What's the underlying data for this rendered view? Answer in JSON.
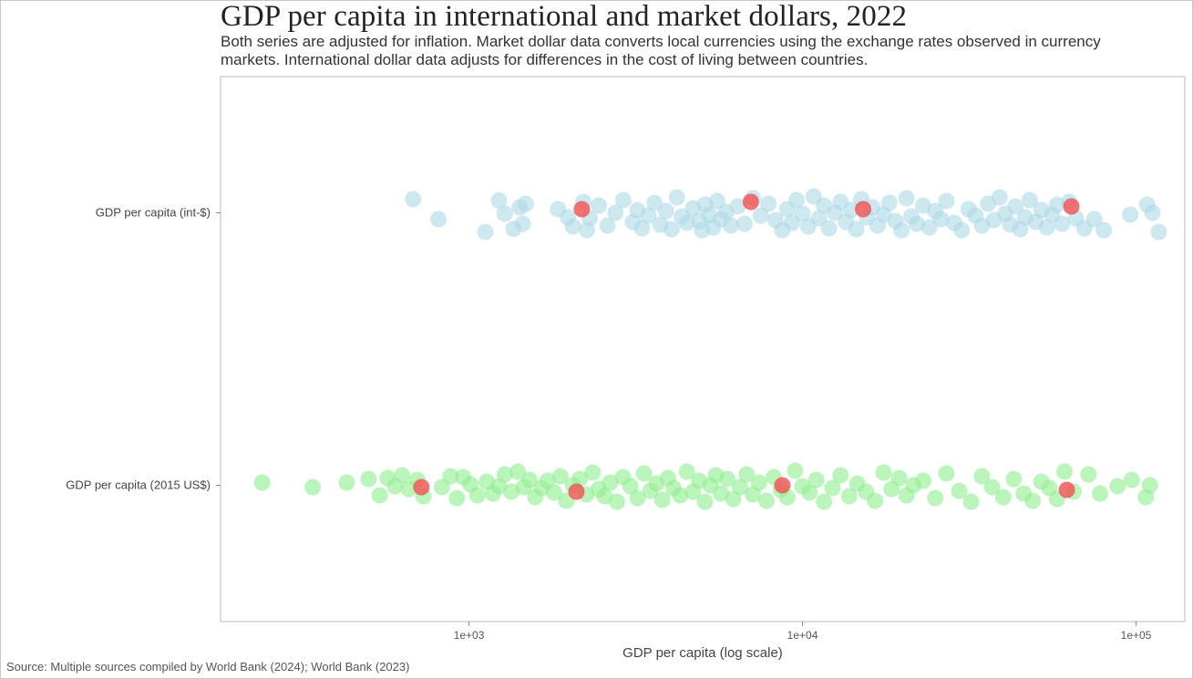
{
  "title": "GDP per capita in international and market dollars, 2022",
  "subtitle": "Both series are adjusted for inflation. Market dollar data converts local currencies using the exchange rates observed in currency markets. International dollar data adjusts for differences in the cost of living between countries.",
  "source": "Source: Multiple sources compiled by World Bank (2024); World Bank (2023)",
  "chart_data": {
    "type": "scatter",
    "log_scale_x": true,
    "xlim": [
      180,
      140000
    ],
    "xlabel": "GDP per capita (log scale)",
    "x_ticks": [
      {
        "value": 1000,
        "label": "1e+03"
      },
      {
        "value": 10000,
        "label": "1e+04"
      },
      {
        "value": 100000,
        "label": "1e+05"
      }
    ],
    "categories": [
      "GDP per capita (int-$)",
      "GDP per capita (2015 US$)"
    ],
    "series": [
      {
        "category": "GDP per capita (int-$)",
        "color": "#add8e6",
        "x": [
          680,
          810,
          1120,
          1230,
          1280,
          1360,
          1420,
          1450,
          1480,
          1850,
          1980,
          2050,
          2200,
          2260,
          2300,
          2450,
          2600,
          2750,
          2900,
          3100,
          3200,
          3300,
          3450,
          3600,
          3750,
          3900,
          4050,
          4200,
          4350,
          4500,
          4700,
          4900,
          5000,
          5100,
          5250,
          5400,
          5550,
          5700,
          5900,
          6100,
          6400,
          6700,
          7100,
          7500,
          7900,
          8300,
          8700,
          9000,
          9300,
          9600,
          10000,
          10400,
          10800,
          11200,
          11600,
          12000,
          12500,
          13000,
          13500,
          14000,
          14500,
          15000,
          15600,
          16200,
          16800,
          17500,
          18200,
          19000,
          19800,
          20500,
          21200,
          22000,
          23000,
          24000,
          25000,
          26000,
          27000,
          28500,
          30000,
          31500,
          33000,
          34500,
          36000,
          37500,
          39000,
          40500,
          42000,
          43500,
          45000,
          46500,
          48000,
          50000,
          52000,
          54000,
          56000,
          58000,
          60000,
          63000,
          66000,
          70000,
          75000,
          80000,
          96000,
          108000,
          112000,
          117000
        ],
        "y_jitter": [
          -0.75,
          0.35,
          1.05,
          -0.68,
          0.05,
          0.88,
          -0.3,
          0.6,
          -0.5,
          -0.2,
          0.25,
          0.75,
          -0.6,
          0.95,
          0.3,
          -0.4,
          0.7,
          0.0,
          -0.7,
          0.5,
          -0.15,
          0.85,
          0.15,
          -0.55,
          0.65,
          -0.1,
          0.9,
          -0.85,
          0.2,
          0.55,
          -0.25,
          0.45,
          0.95,
          -0.45,
          0.1,
          0.8,
          -0.65,
          0.35,
          -0.05,
          0.7,
          -0.35,
          0.6,
          -0.8,
          0.15,
          -0.5,
          0.4,
          0.95,
          -0.2,
          0.55,
          -0.7,
          0.05,
          0.75,
          -0.9,
          0.3,
          -0.4,
          0.85,
          0.0,
          -0.6,
          0.5,
          -0.15,
          0.9,
          -0.75,
          0.25,
          -0.3,
          0.7,
          0.1,
          -0.55,
          0.45,
          0.95,
          -0.8,
          0.2,
          0.6,
          -0.4,
          0.8,
          -0.1,
          0.35,
          -0.65,
          0.55,
          0.95,
          -0.2,
          0.15,
          0.7,
          -0.5,
          0.4,
          -0.85,
          0.05,
          0.65,
          -0.35,
          0.9,
          0.25,
          -0.7,
          0.5,
          -0.15,
          0.8,
          0.1,
          -0.45,
          0.6,
          -0.6,
          0.3,
          0.85,
          0.35,
          0.95,
          0.1,
          -0.45,
          0.0,
          1.05
        ]
      },
      {
        "category": "GDP per capita (2015 US$)",
        "color": "#90ee90",
        "x": [
          240,
          340,
          430,
          500,
          540,
          570,
          600,
          630,
          660,
          700,
          730,
          830,
          880,
          920,
          960,
          1010,
          1060,
          1130,
          1180,
          1230,
          1280,
          1340,
          1400,
          1460,
          1520,
          1580,
          1650,
          1720,
          1800,
          1880,
          1960,
          2050,
          2150,
          2250,
          2350,
          2450,
          2550,
          2650,
          2780,
          2900,
          3050,
          3200,
          3350,
          3500,
          3650,
          3800,
          3950,
          4100,
          4300,
          4500,
          4700,
          4900,
          5100,
          5300,
          5500,
          5700,
          5950,
          6200,
          6500,
          6800,
          7100,
          7400,
          7800,
          8200,
          8600,
          9000,
          9500,
          10000,
          10500,
          11000,
          11600,
          12300,
          13000,
          13800,
          14600,
          15500,
          16500,
          17500,
          18500,
          19500,
          20500,
          21500,
          23000,
          25000,
          27000,
          29500,
          32000,
          34500,
          37000,
          40000,
          43000,
          46000,
          49000,
          52000,
          55000,
          58000,
          61000,
          65000,
          72000,
          78000,
          88000,
          97000,
          107000,
          110000
        ],
        "y_jitter": [
          -0.15,
          0.1,
          -0.15,
          -0.35,
          0.55,
          -0.4,
          0.05,
          -0.55,
          0.2,
          -0.3,
          0.6,
          0.1,
          -0.5,
          0.7,
          -0.45,
          -0.05,
          0.55,
          -0.2,
          0.45,
          0.05,
          -0.6,
          0.35,
          -0.75,
          0.1,
          -0.3,
          0.65,
          0.15,
          -0.25,
          0.4,
          -0.5,
          0.85,
          0.0,
          -0.35,
          0.5,
          -0.7,
          0.2,
          0.6,
          -0.15,
          0.9,
          -0.45,
          0.05,
          0.7,
          -0.65,
          0.3,
          -0.1,
          0.8,
          -0.4,
          0.15,
          0.55,
          -0.75,
          0.35,
          -0.25,
          0.9,
          0.0,
          -0.55,
          0.45,
          -0.35,
          0.75,
          0.1,
          -0.6,
          0.5,
          -0.15,
          0.85,
          -0.45,
          0.25,
          0.65,
          -0.8,
          0.05,
          0.4,
          -0.3,
          0.9,
          0.15,
          -0.55,
          0.6,
          -0.1,
          0.35,
          0.85,
          -0.7,
          0.2,
          -0.4,
          0.55,
          0.0,
          -0.25,
          0.7,
          -0.65,
          0.3,
          0.9,
          -0.5,
          0.1,
          0.65,
          -0.35,
          0.45,
          0.85,
          -0.2,
          0.15,
          0.75,
          -0.75,
          0.35,
          -0.6,
          0.45,
          0.05,
          -0.3,
          0.65,
          0.0
        ]
      }
    ],
    "highlighted": {
      "color": "#f05050",
      "points": [
        {
          "category": "GDP per capita (int-$)",
          "x": 2180,
          "y_jitter": -0.2
        },
        {
          "category": "GDP per capita (int-$)",
          "x": 7000,
          "y_jitter": -0.6
        },
        {
          "category": "GDP per capita (int-$)",
          "x": 15200,
          "y_jitter": -0.2
        },
        {
          "category": "GDP per capita (int-$)",
          "x": 64000,
          "y_jitter": -0.35
        },
        {
          "category": "GDP per capita (2015 US$)",
          "x": 720,
          "y_jitter": 0.1
        },
        {
          "category": "GDP per capita (2015 US$)",
          "x": 2100,
          "y_jitter": 0.35
        },
        {
          "category": "GDP per capita (2015 US$)",
          "x": 8700,
          "y_jitter": 0.0
        },
        {
          "category": "GDP per capita (2015 US$)",
          "x": 62000,
          "y_jitter": 0.25
        }
      ]
    },
    "grid": false,
    "legend": "none"
  }
}
